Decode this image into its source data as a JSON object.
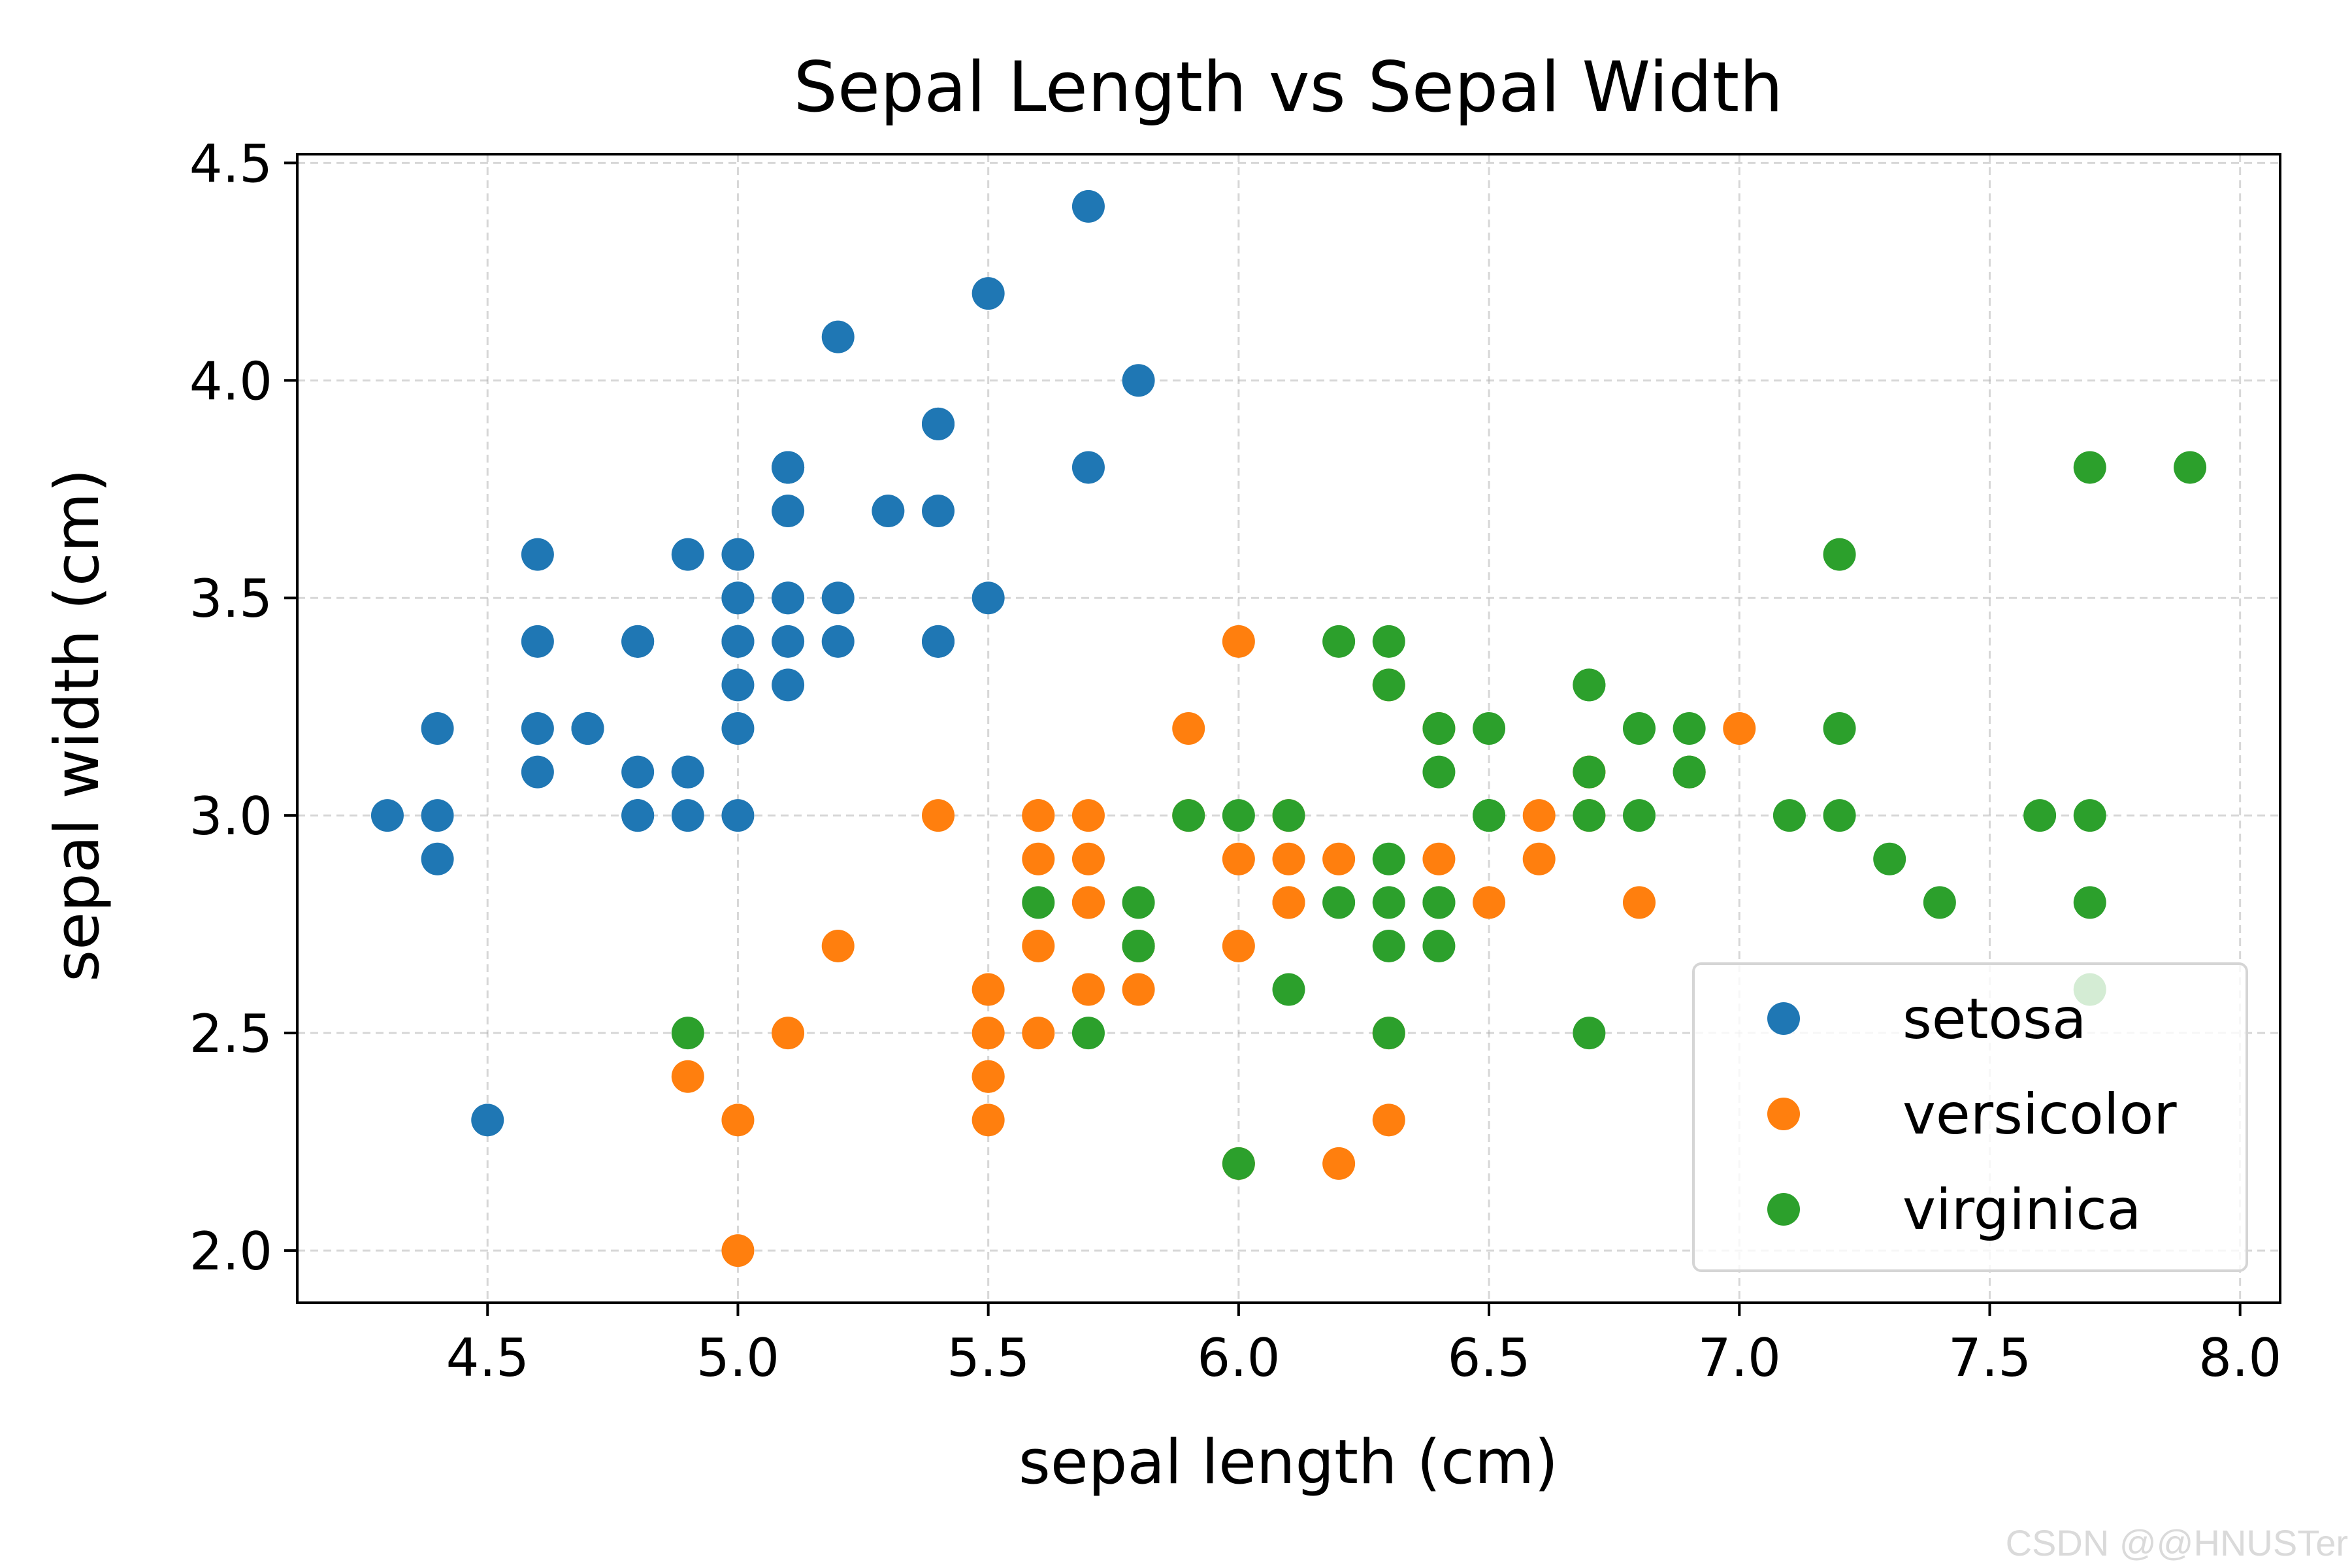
{
  "chart_data": {
    "type": "scatter",
    "title": "Sepal Length vs Sepal Width",
    "xlabel": "sepal length (cm)",
    "ylabel": "sepal width (cm)",
    "xlim": [
      4.12,
      8.08
    ],
    "ylim": [
      1.88,
      4.52
    ],
    "xticks": [
      4.5,
      5.0,
      5.5,
      6.0,
      6.5,
      7.0,
      7.5,
      8.0
    ],
    "yticks": [
      2.0,
      2.5,
      3.0,
      3.5,
      4.0,
      4.5
    ],
    "grid": true,
    "legend_position": "lower-right",
    "series": [
      {
        "name": "setosa",
        "color": "#1f77b4",
        "points": [
          [
            5.1,
            3.5
          ],
          [
            4.9,
            3.0
          ],
          [
            4.7,
            3.2
          ],
          [
            4.6,
            3.1
          ],
          [
            5.0,
            3.6
          ],
          [
            5.4,
            3.9
          ],
          [
            4.6,
            3.4
          ],
          [
            5.0,
            3.4
          ],
          [
            4.4,
            2.9
          ],
          [
            4.9,
            3.1
          ],
          [
            5.4,
            3.7
          ],
          [
            4.8,
            3.4
          ],
          [
            4.8,
            3.0
          ],
          [
            4.3,
            3.0
          ],
          [
            5.8,
            4.0
          ],
          [
            5.7,
            4.4
          ],
          [
            5.4,
            3.9
          ],
          [
            5.1,
            3.5
          ],
          [
            5.7,
            3.8
          ],
          [
            5.1,
            3.8
          ],
          [
            5.4,
            3.4
          ],
          [
            5.1,
            3.7
          ],
          [
            4.6,
            3.6
          ],
          [
            5.1,
            3.3
          ],
          [
            4.8,
            3.4
          ],
          [
            5.0,
            3.0
          ],
          [
            5.0,
            3.4
          ],
          [
            5.2,
            3.5
          ],
          [
            5.2,
            3.4
          ],
          [
            4.7,
            3.2
          ],
          [
            4.8,
            3.1
          ],
          [
            5.4,
            3.4
          ],
          [
            5.2,
            4.1
          ],
          [
            5.5,
            4.2
          ],
          [
            4.9,
            3.1
          ],
          [
            5.0,
            3.2
          ],
          [
            5.5,
            3.5
          ],
          [
            4.9,
            3.6
          ],
          [
            4.4,
            3.0
          ],
          [
            5.1,
            3.4
          ],
          [
            5.0,
            3.5
          ],
          [
            4.5,
            2.3
          ],
          [
            4.4,
            3.2
          ],
          [
            5.0,
            3.5
          ],
          [
            5.1,
            3.8
          ],
          [
            4.8,
            3.0
          ],
          [
            5.1,
            3.8
          ],
          [
            4.6,
            3.2
          ],
          [
            5.3,
            3.7
          ],
          [
            5.0,
            3.3
          ]
        ]
      },
      {
        "name": "versicolor",
        "color": "#ff7f0e",
        "points": [
          [
            7.0,
            3.2
          ],
          [
            6.4,
            3.2
          ],
          [
            6.9,
            3.1
          ],
          [
            5.5,
            2.3
          ],
          [
            6.5,
            2.8
          ],
          [
            5.7,
            2.8
          ],
          [
            6.3,
            3.3
          ],
          [
            4.9,
            2.4
          ],
          [
            6.6,
            2.9
          ],
          [
            5.2,
            2.7
          ],
          [
            5.0,
            2.0
          ],
          [
            5.9,
            3.0
          ],
          [
            6.0,
            2.2
          ],
          [
            6.1,
            2.9
          ],
          [
            5.6,
            2.9
          ],
          [
            6.7,
            3.1
          ],
          [
            5.6,
            3.0
          ],
          [
            5.8,
            2.7
          ],
          [
            6.2,
            2.2
          ],
          [
            5.6,
            2.5
          ],
          [
            5.9,
            3.2
          ],
          [
            6.1,
            2.8
          ],
          [
            6.3,
            2.5
          ],
          [
            6.1,
            2.8
          ],
          [
            6.4,
            2.9
          ],
          [
            6.6,
            3.0
          ],
          [
            6.8,
            2.8
          ],
          [
            6.7,
            3.0
          ],
          [
            6.0,
            2.9
          ],
          [
            5.7,
            2.6
          ],
          [
            5.5,
            2.4
          ],
          [
            5.5,
            2.4
          ],
          [
            5.8,
            2.7
          ],
          [
            6.0,
            2.7
          ],
          [
            5.4,
            3.0
          ],
          [
            6.0,
            3.4
          ],
          [
            6.7,
            3.1
          ],
          [
            6.3,
            2.3
          ],
          [
            5.6,
            3.0
          ],
          [
            5.5,
            2.5
          ],
          [
            5.5,
            2.6
          ],
          [
            6.1,
            3.0
          ],
          [
            5.8,
            2.6
          ],
          [
            5.0,
            2.3
          ],
          [
            5.6,
            2.7
          ],
          [
            5.7,
            3.0
          ],
          [
            5.7,
            2.9
          ],
          [
            6.2,
            2.9
          ],
          [
            5.1,
            2.5
          ],
          [
            5.7,
            2.8
          ]
        ]
      },
      {
        "name": "virginica",
        "color": "#2ca02c",
        "points": [
          [
            6.3,
            3.3
          ],
          [
            5.8,
            2.7
          ],
          [
            7.1,
            3.0
          ],
          [
            6.3,
            2.9
          ],
          [
            6.5,
            3.0
          ],
          [
            7.6,
            3.0
          ],
          [
            4.9,
            2.5
          ],
          [
            7.3,
            2.9
          ],
          [
            6.7,
            2.5
          ],
          [
            7.2,
            3.6
          ],
          [
            6.5,
            3.2
          ],
          [
            6.4,
            2.7
          ],
          [
            6.8,
            3.0
          ],
          [
            5.7,
            2.5
          ],
          [
            5.8,
            2.8
          ],
          [
            6.4,
            3.2
          ],
          [
            6.5,
            3.0
          ],
          [
            7.7,
            3.8
          ],
          [
            7.7,
            2.6
          ],
          [
            6.0,
            2.2
          ],
          [
            6.9,
            3.2
          ],
          [
            5.6,
            2.8
          ],
          [
            7.7,
            2.8
          ],
          [
            6.3,
            2.7
          ],
          [
            6.7,
            3.3
          ],
          [
            7.2,
            3.2
          ],
          [
            6.2,
            2.8
          ],
          [
            6.1,
            3.0
          ],
          [
            6.4,
            2.8
          ],
          [
            7.2,
            3.0
          ],
          [
            7.4,
            2.8
          ],
          [
            7.9,
            3.8
          ],
          [
            6.4,
            2.8
          ],
          [
            6.3,
            2.8
          ],
          [
            6.1,
            2.6
          ],
          [
            7.7,
            3.0
          ],
          [
            6.3,
            3.4
          ],
          [
            6.4,
            3.1
          ],
          [
            6.0,
            3.0
          ],
          [
            6.9,
            3.1
          ],
          [
            6.7,
            3.1
          ],
          [
            6.9,
            3.1
          ],
          [
            5.8,
            2.7
          ],
          [
            6.8,
            3.2
          ],
          [
            6.7,
            3.3
          ],
          [
            6.7,
            3.0
          ],
          [
            6.3,
            2.5
          ],
          [
            6.5,
            3.0
          ],
          [
            6.2,
            3.4
          ],
          [
            5.9,
            3.0
          ]
        ]
      }
    ]
  },
  "watermark": "CSDN @@HNUSTer"
}
